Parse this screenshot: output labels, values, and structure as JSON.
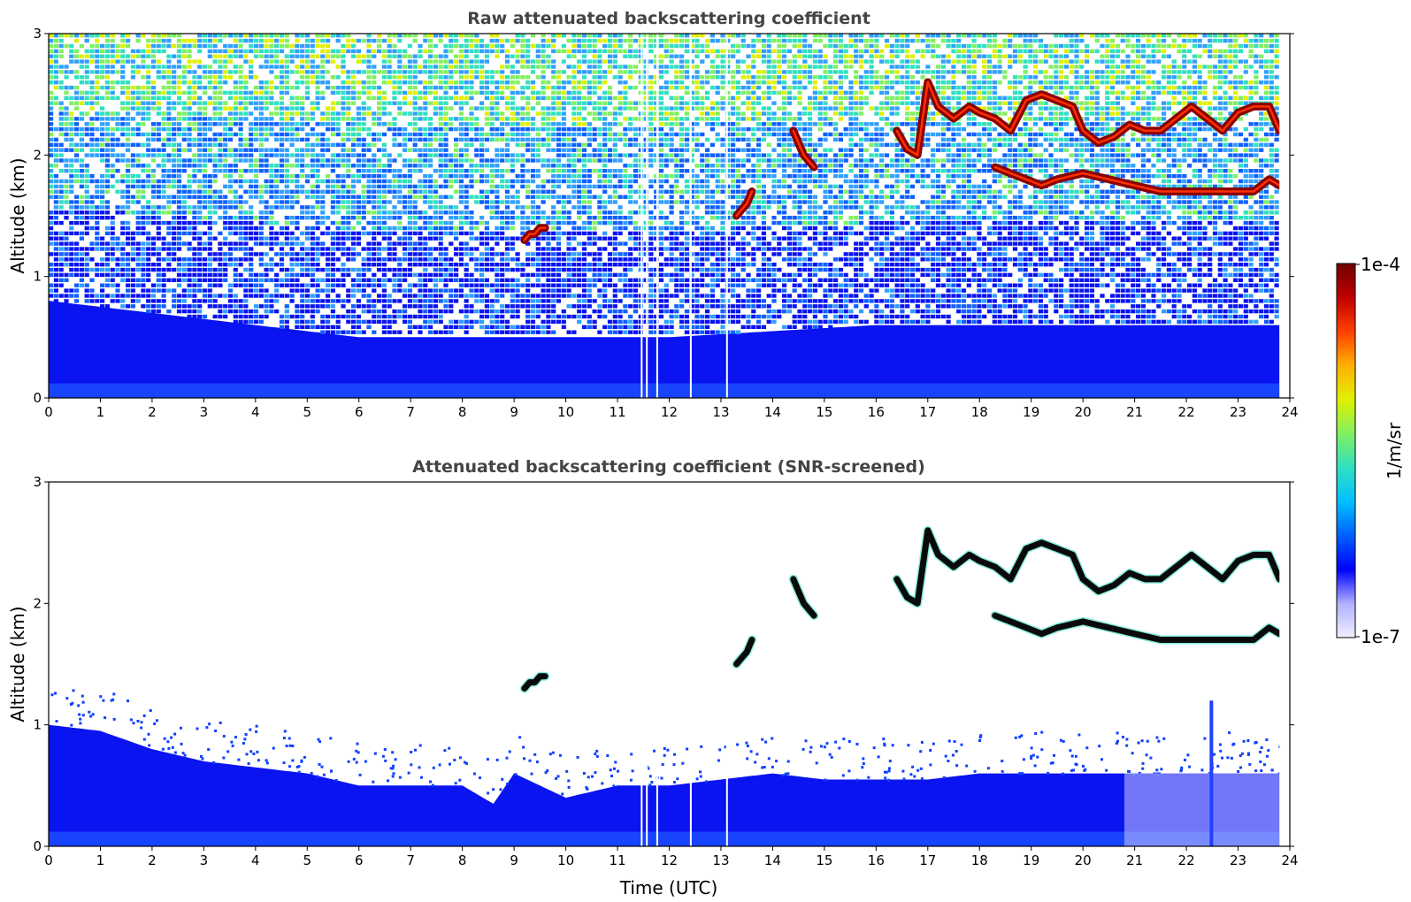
{
  "chart_data": [
    {
      "type": "heatmap",
      "title": "Raw attenuated backscattering coefficient",
      "xlabel": "",
      "ylabel": "Altitude (km)",
      "xlim": [
        0,
        24
      ],
      "ylim": [
        0,
        3
      ],
      "xticks": [
        "0",
        "1",
        "2",
        "3",
        "4",
        "5",
        "6",
        "7",
        "8",
        "9",
        "10",
        "11",
        "12",
        "13",
        "14",
        "15",
        "16",
        "17",
        "18",
        "19",
        "20",
        "21",
        "22",
        "23",
        "24"
      ],
      "yticks": [
        "0",
        "1",
        "2",
        "3"
      ],
      "data_end_hour": 23.8,
      "boundary_layer_top_km": {
        "x": [
          0,
          2,
          4,
          6,
          8,
          10,
          12,
          14,
          16,
          18,
          20,
          21,
          22,
          23,
          23.8
        ],
        "y": [
          0.8,
          0.7,
          0.6,
          0.5,
          0.5,
          0.5,
          0.5,
          0.55,
          0.6,
          0.6,
          0.6,
          0.6,
          0.6,
          0.6,
          0.6
        ]
      },
      "cloud_layers": [
        {
          "x": [
            9.2,
            9.3,
            9.4,
            9.5,
            9.6
          ],
          "y": [
            1.3,
            1.35,
            1.35,
            1.4,
            1.4
          ]
        },
        {
          "x": [
            13.3,
            13.4,
            13.5,
            13.6
          ],
          "y": [
            1.5,
            1.55,
            1.6,
            1.7
          ]
        },
        {
          "x": [
            14.4,
            14.5,
            14.6,
            14.7,
            14.8
          ],
          "y": [
            2.2,
            2.1,
            2.0,
            1.95,
            1.9
          ]
        },
        {
          "x": [
            16.4,
            16.6,
            16.8,
            17.0,
            17.2,
            17.5,
            17.8,
            18.0,
            18.3,
            18.6,
            18.9,
            19.2,
            19.5,
            19.8,
            20.0,
            20.3,
            20.6,
            20.9,
            21.2,
            21.5,
            21.8,
            22.1,
            22.4,
            22.7,
            23.0,
            23.3,
            23.6,
            23.8
          ],
          "y": [
            2.2,
            2.05,
            2.0,
            2.6,
            2.4,
            2.3,
            2.4,
            2.35,
            2.3,
            2.2,
            2.45,
            2.5,
            2.45,
            2.4,
            2.2,
            2.1,
            2.15,
            2.25,
            2.2,
            2.2,
            2.3,
            2.4,
            2.3,
            2.2,
            2.35,
            2.4,
            2.4,
            2.2
          ]
        },
        {
          "x": [
            18.3,
            18.6,
            18.9,
            19.2,
            19.5,
            20.0,
            20.5,
            21.0,
            21.5,
            22.0,
            22.5,
            23.0,
            23.3,
            23.6,
            23.8
          ],
          "y": [
            1.9,
            1.85,
            1.8,
            1.75,
            1.8,
            1.85,
            1.8,
            1.75,
            1.7,
            1.7,
            1.7,
            1.7,
            1.7,
            1.8,
            1.75
          ]
        }
      ]
    },
    {
      "type": "heatmap",
      "title": "Attenuated backscattering coefficient (SNR-screened)",
      "xlabel": "Time (UTC)",
      "ylabel": "Altitude (km)",
      "xlim": [
        0,
        24
      ],
      "ylim": [
        0,
        3
      ],
      "xticks": [
        "0",
        "1",
        "2",
        "3",
        "4",
        "5",
        "6",
        "7",
        "8",
        "9",
        "10",
        "11",
        "12",
        "13",
        "14",
        "15",
        "16",
        "17",
        "18",
        "19",
        "20",
        "21",
        "22",
        "23",
        "24"
      ],
      "yticks": [
        "0",
        "1",
        "2",
        "3"
      ],
      "data_end_hour": 23.8,
      "boundary_layer_top_km": {
        "x": [
          0,
          1,
          2,
          3,
          4,
          5,
          6,
          7,
          8,
          8.6,
          9,
          9.5,
          10,
          11,
          12,
          13,
          14,
          15,
          16,
          17,
          18,
          19,
          20,
          21,
          22,
          23,
          23.8
        ],
        "y": [
          1.0,
          0.95,
          0.8,
          0.7,
          0.65,
          0.6,
          0.5,
          0.5,
          0.5,
          0.35,
          0.6,
          0.5,
          0.4,
          0.5,
          0.5,
          0.55,
          0.6,
          0.55,
          0.55,
          0.55,
          0.6,
          0.6,
          0.6,
          0.6,
          0.6,
          0.6,
          0.6
        ]
      },
      "cloud_layers": [
        {
          "x": [
            9.2,
            9.3,
            9.4,
            9.5,
            9.6
          ],
          "y": [
            1.3,
            1.35,
            1.35,
            1.4,
            1.4
          ]
        },
        {
          "x": [
            13.3,
            13.4,
            13.5,
            13.6
          ],
          "y": [
            1.5,
            1.55,
            1.6,
            1.7
          ]
        },
        {
          "x": [
            14.4,
            14.5,
            14.6,
            14.7,
            14.8
          ],
          "y": [
            2.2,
            2.1,
            2.0,
            1.95,
            1.9
          ]
        },
        {
          "x": [
            16.4,
            16.6,
            16.8,
            17.0,
            17.2,
            17.5,
            17.8,
            18.0,
            18.3,
            18.6,
            18.9,
            19.2,
            19.5,
            19.8,
            20.0,
            20.3,
            20.6,
            20.9,
            21.2,
            21.5,
            21.8,
            22.1,
            22.4,
            22.7,
            23.0,
            23.3,
            23.6,
            23.8
          ],
          "y": [
            2.2,
            2.05,
            2.0,
            2.6,
            2.4,
            2.3,
            2.4,
            2.35,
            2.3,
            2.2,
            2.45,
            2.5,
            2.45,
            2.4,
            2.2,
            2.1,
            2.15,
            2.25,
            2.2,
            2.2,
            2.3,
            2.4,
            2.3,
            2.2,
            2.35,
            2.4,
            2.4,
            2.2
          ]
        },
        {
          "x": [
            18.3,
            18.6,
            18.9,
            19.2,
            19.5,
            20.0,
            20.5,
            21.0,
            21.5,
            22.0,
            22.5,
            23.0,
            23.3,
            23.6,
            23.8
          ],
          "y": [
            1.9,
            1.85,
            1.8,
            1.75,
            1.8,
            1.85,
            1.8,
            1.75,
            1.7,
            1.7,
            1.7,
            1.7,
            1.7,
            1.8,
            1.75
          ]
        }
      ]
    }
  ],
  "colorbar": {
    "label": "1/m/sr",
    "min_label": "1e-7",
    "max_label": "1e-4",
    "scale": "log",
    "colors": [
      "#f0f0ff",
      "#b0b0ff",
      "#0000ff",
      "#0060ff",
      "#00c0ff",
      "#30e0c0",
      "#80f060",
      "#e0f000",
      "#ffb000",
      "#ff4000",
      "#c00000",
      "#700000"
    ]
  }
}
